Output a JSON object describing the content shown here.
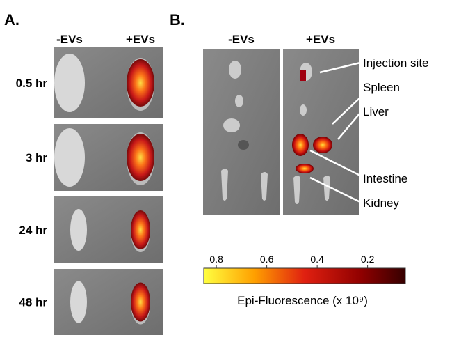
{
  "panel_a": {
    "label": "A.",
    "columns": [
      "-EVs",
      "+EVs"
    ],
    "rows": [
      "0.5 hr",
      "3 hr",
      "24 hr",
      "48 hr"
    ]
  },
  "panel_b": {
    "label": "B.",
    "columns": [
      "-EVs",
      "+EVs"
    ],
    "organs": [
      "Injection site",
      "Spleen",
      "Liver",
      "Intestine",
      "Kidney"
    ]
  },
  "colorbar": {
    "range": [
      0.85,
      0.05
    ],
    "ticks": [
      0.8,
      0.6,
      0.4,
      0.2
    ],
    "label": "Epi-Fluorescence (x 10⁹)"
  }
}
